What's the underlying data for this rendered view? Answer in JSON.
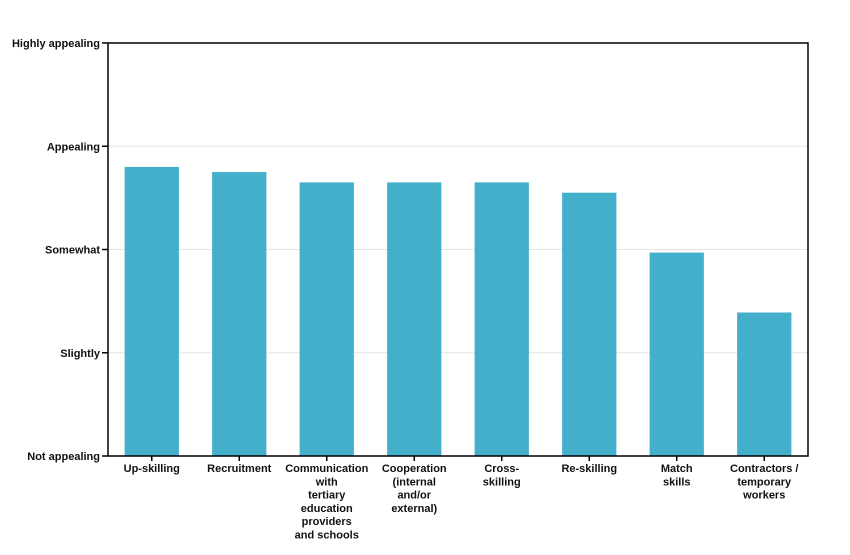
{
  "chart_data": {
    "type": "bar",
    "categories": [
      [
        "Up-skilling"
      ],
      [
        "Recruitment"
      ],
      [
        "Communication",
        "with",
        "tertiary",
        "education",
        "providers",
        "and schools"
      ],
      [
        "Cooperation",
        "(internal",
        "and/or",
        "external)"
      ],
      [
        "Cross-",
        "skilling"
      ],
      [
        "Re-skilling"
      ],
      [
        "Match",
        "skills"
      ],
      [
        "Contractors /",
        "temporary",
        "workers"
      ]
    ],
    "values": [
      2.8,
      2.75,
      2.65,
      2.65,
      2.65,
      2.55,
      1.97,
      1.39
    ],
    "ylim": [
      0,
      4
    ],
    "yticks": [
      {
        "value": 0,
        "label": "Not appealing"
      },
      {
        "value": 1,
        "label": "Slightly"
      },
      {
        "value": 2,
        "label": "Somewhat"
      },
      {
        "value": 3,
        "label": "Appealing"
      },
      {
        "value": 4,
        "label": "Highly appealing"
      }
    ],
    "grid": true,
    "bar_color": "#43AFCA",
    "grid_color": "#e3e3e3",
    "axis_color": "#000000"
  }
}
